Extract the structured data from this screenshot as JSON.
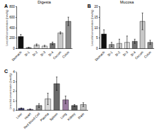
{
  "chart_data": [
    {
      "type": "bar",
      "title": "Digesta",
      "annotations": [
        "A"
      ],
      "y_label": "Linezolid concentration (nmol/g)",
      "categories": [
        "Stomach",
        "SI-1",
        "SI-2",
        "SI-3",
        "SI-4",
        "Cecum",
        "Colon"
      ],
      "values": [
        230,
        20,
        70,
        50,
        100,
        300,
        520
      ],
      "errors": [
        40,
        5,
        20,
        15,
        25,
        20,
        80
      ],
      "colors": [
        "#111111",
        "#9a9a9a",
        "#cfcfcf",
        "#e0e0e0",
        "#707070",
        "#c8c8c8",
        "#8c8c8c"
      ],
      "ylim": [
        0,
        800
      ],
      "yticks": [
        0,
        200,
        400,
        600,
        800
      ]
    },
    {
      "type": "bar",
      "title": "Mucosa",
      "annotations": [
        "B"
      ],
      "y_label": "Linezolid concentration (nmol/g)",
      "categories": [
        "Stomach",
        "SI-1",
        "SI-2",
        "SI-3",
        "SI-4",
        "Cecum",
        "Colon"
      ],
      "values": [
        7,
        2,
        2.5,
        3,
        3.5,
        13,
        3
      ],
      "errors": [
        2,
        1,
        2,
        3,
        1,
        4,
        1
      ],
      "colors": [
        "#111111",
        "#9a9a9a",
        "#cfcfcf",
        "#e0e0e0",
        "#707070",
        "#c8c8c8",
        "#8c8c8c"
      ],
      "ylim": [
        0,
        20
      ],
      "yticks": [
        0,
        5,
        10,
        15,
        20
      ]
    },
    {
      "type": "bar",
      "annotations": [
        "C"
      ],
      "y_label": "Linezolid concentration (nmol/g)",
      "categories": [
        "Liver",
        "Heart",
        "Red Blood Cell",
        "Plasma",
        "Spleen",
        "Lung",
        "Kidney",
        "Brain"
      ],
      "values": [
        0.2,
        0.1,
        0.5,
        1.2,
        2.8,
        1.1,
        0.5,
        0.6
      ],
      "errors": [
        0.05,
        0.05,
        0.2,
        0.6,
        0.7,
        0.4,
        0.1,
        0.2
      ],
      "colors": [
        "#4a4a7a",
        "#7a6a9a",
        "#8a8a8a",
        "#d8d8d8",
        "#6a6a6a",
        "#9a7aa0",
        "#5a5a5a",
        "#c0c0c0"
      ],
      "ylim": [
        0,
        4
      ],
      "yticks": [
        0,
        1,
        2,
        3,
        4
      ]
    }
  ]
}
